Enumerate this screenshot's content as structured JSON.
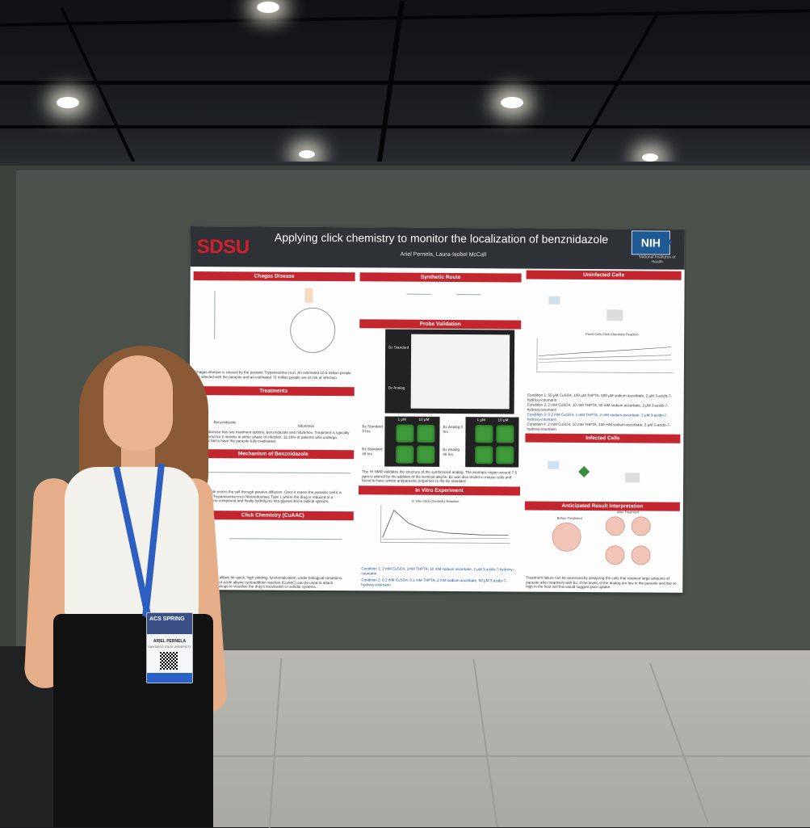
{
  "poster": {
    "logo": "SDSU",
    "title": "Applying click chemistry to monitor the localization of benznidazole",
    "authors": "Ariel Pernela, Laura-Isobel McCall",
    "nih_logo": "NIH",
    "nih_sub": "National Institutes of Health",
    "sections": {
      "chagas": "Chagas Disease",
      "treatments": "Treatments",
      "mechanism": "Mechanism of Benznidazole",
      "click": "Click Chemistry (CuAAC)",
      "synthetic": "Synthetic Route",
      "probe": "Probe Validation",
      "invitro": "In Vitro Experiment",
      "uninfected": "Uninfected Cells",
      "infected": "Infected Cells",
      "anticipated": "Anticipated Result Interpretation"
    },
    "chagas_text": "Chagas disease is caused by the parasite Trypanosoma cruzi. An estimated 10.5 million people are infected with the parasite and an estimated 75 million people are at risk of infection.",
    "treatments_labels": [
      "Benznidazole",
      "Nifurtimox"
    ],
    "treatments_text": "Chagas disease has two treatment options, benznidazole and nifurtimox. Treatment is typically administered for 2 months in either phase of infection. 11-18% of patients who undergo treatment fail to have the parasite fully eradicated.",
    "mechanism_text": "Benznidazole enters the cell through passive diffusion. Once it enters the parasitic cell it is reduced by Trypanosoma cruzi Nitroreductase Type 1 where the drug is reduced to a hydroxylamine compound and finally hydrolyzes into glyoxal and a radical species.",
    "click_text": "Click chemistry allows for quick, high yielding, functionalization, under biological conditions. Copper catalyzed azide alkyne cycloaddition reaction (CuAAC) can be used to attach fluorophores to drugs to visualize the drug's localization in cellular systems.",
    "nmr_labels": [
      "Bz Standard",
      "Bz Analog"
    ],
    "grid_headers": [
      "1 μM",
      "10 μM"
    ],
    "grid_rows_left": [
      "Bz Standard 0 hrs",
      "Bz Standard 48 hrs"
    ],
    "grid_rows_right": [
      "Bz Analog 0 hrs",
      "Bz Analog 48 hrs"
    ],
    "probe_text": "The ¹H NMR validates the structure of the synthesized analog. The aromatic region around 7.5 ppm is altered by the addition of the terminal alkyne. Bz was also tested in mouse cells and found to have similar antiparasitic properties to the Bz standard.",
    "invitro_chart_title": "In Vitro Click Chemistry Reaction",
    "invitro_conditions": [
      "Condition 1: 2 mM CuSO4, 1mM THPTA, 10 mM sodium ascorbate, 2 μM 3-azido-7-hydroxy-coumarin",
      "Condition 2: 0.2 mM CuSO4, 0.1 mM THPTA, 2 mM sodium ascorbate, 50 μM 3-azido-7-hydroxy-coumarin"
    ],
    "uninfected_chart_title": "Fixed Cells Click Chemistry Reaction",
    "uninfected_conditions": [
      "Condition 1: 50 μM CuSO4, 100 μM THPTA, 500 μM sodium ascorbate, 2 μM 3-azido-7-hydroxy-coumarin",
      "Condition 2: 2 mM CuSO4, 10 mM THPTA, 50 mM sodium ascorbate, 2 μM 3-azido-7-hydroxy-coumarin",
      "Condition 3: 0.2 mM CuSO4, 1 mM THPTA, 2 mM sodium ascorbate, 2 μM 3-azido-7-hydroxy-coumarin",
      "Condition 4: 2 mM CuSO4, 10 mM THPTA, 100 mM sodium ascorbate, 2 μM 3-azido-7-hydroxy-coumarin"
    ],
    "anticipated_labels": [
      "Before Treatment",
      "After Treatment"
    ],
    "anticipated_text": "Treatment failure can be assessed by analyzing the cells that retained large amounts of parasite after treatment with Bz. If the levels of the analog are low in the parasite and low or high in the host cell this would suggest poor uptake."
  },
  "badge": {
    "event": "ACS SPRING",
    "name": "ARIEL PERNELA",
    "affiliation": "SAN DIEGO STATE UNIVERSITY"
  }
}
